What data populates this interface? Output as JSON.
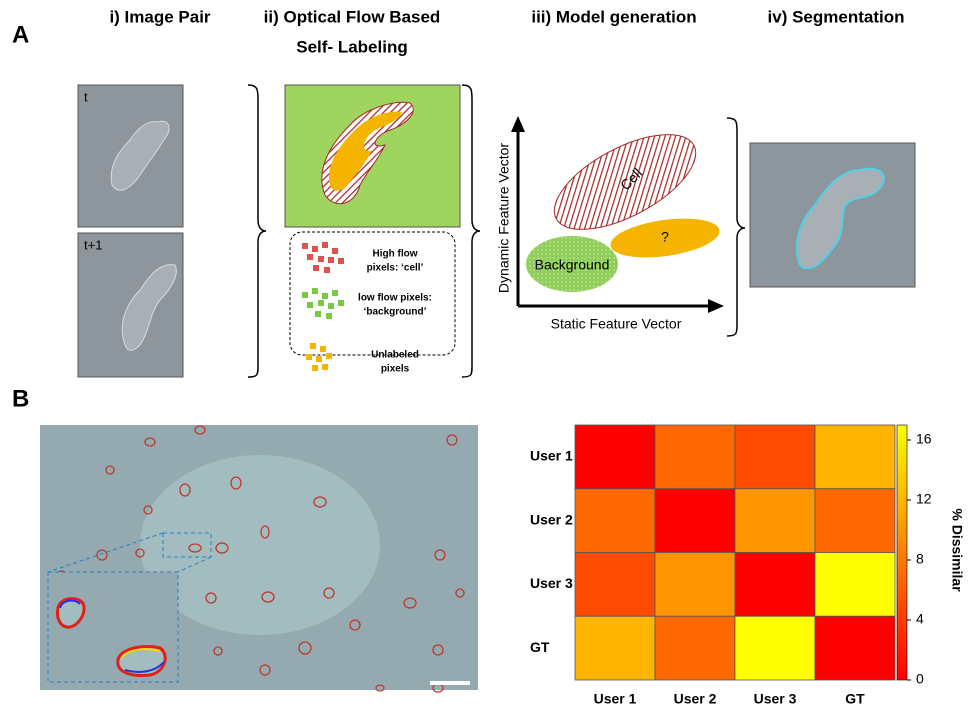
{
  "panel_a": {
    "label": "A",
    "titles": {
      "image_pair": "i) Image Pair",
      "self_labeling_1": "ii) Optical Flow Based",
      "self_labeling_2": "Self- Labeling",
      "model": "iii) Model generation",
      "segmentation": "iv) Segmentation"
    },
    "frames": [
      "t",
      "t+1"
    ],
    "legend": {
      "high_1": "High flow",
      "high_2": "pixels: ‘cell’",
      "low_1": "low flow pixels:",
      "low_2": "‘background’",
      "unl_1": "Unlabeled",
      "unl_2": "pixels"
    },
    "model": {
      "y_label": "Dynamic Feature Vector",
      "x_label": "Static Feature Vector",
      "cell": "Cell",
      "unknown": "?",
      "background": "Background"
    }
  },
  "panel_b": {
    "label": "B",
    "heatmap": {
      "type": "heatmap",
      "rows": [
        "User 1",
        "User 2",
        "User 3",
        "GT"
      ],
      "columns": [
        "User 1",
        "User 2",
        "User 3",
        "GT"
      ],
      "values": [
        [
          0,
          7,
          5,
          12
        ],
        [
          7,
          0,
          10,
          7
        ],
        [
          5,
          10,
          0,
          17
        ],
        [
          12,
          7,
          17,
          0
        ]
      ],
      "clim": [
        0,
        17
      ],
      "cticks": [
        0,
        4,
        8,
        12,
        16
      ],
      "colormap": [
        "#ff0000",
        "#ffff00"
      ],
      "colorbar_label": "% Dissimilar"
    }
  }
}
